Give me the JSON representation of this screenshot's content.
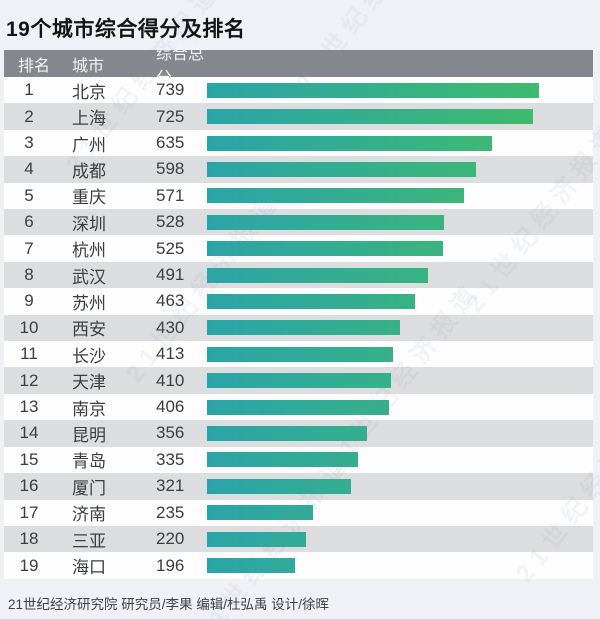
{
  "title": "19个城市综合得分及排名",
  "table": {
    "headers": {
      "rank": "排名",
      "city": "城市",
      "score": "综合总分"
    },
    "rows": [
      {
        "rank": "1",
        "city": "北京",
        "score": 739
      },
      {
        "rank": "2",
        "city": "上海",
        "score": 725
      },
      {
        "rank": "3",
        "city": "广州",
        "score": 635
      },
      {
        "rank": "4",
        "city": "成都",
        "score": 598
      },
      {
        "rank": "5",
        "city": "重庆",
        "score": 571
      },
      {
        "rank": "6",
        "city": "深圳",
        "score": 528
      },
      {
        "rank": "7",
        "city": "杭州",
        "score": 525
      },
      {
        "rank": "8",
        "city": "武汉",
        "score": 491
      },
      {
        "rank": "9",
        "city": "苏州",
        "score": 463
      },
      {
        "rank": "10",
        "city": "西安",
        "score": 430
      },
      {
        "rank": "11",
        "city": "长沙",
        "score": 413
      },
      {
        "rank": "12",
        "city": "天津",
        "score": 410
      },
      {
        "rank": "13",
        "city": "南京",
        "score": 406
      },
      {
        "rank": "14",
        "city": "昆明",
        "score": 356
      },
      {
        "rank": "15",
        "city": "青岛",
        "score": 335
      },
      {
        "rank": "16",
        "city": "厦门",
        "score": 321
      },
      {
        "rank": "17",
        "city": "济南",
        "score": 235
      },
      {
        "rank": "18",
        "city": "三亚",
        "score": 220
      },
      {
        "rank": "19",
        "city": "海口",
        "score": 196
      }
    ]
  },
  "footer": "21世纪经济研究院 研究员/李果  编辑/杜弘禹  设计/徐晖",
  "watermark_text": "21世纪经济报道",
  "colors": {
    "bar_gradient_start": "#2ba4a9",
    "bar_gradient_end": "#3fbb6d",
    "header_bg": "#84878d",
    "row_alt_bg": "#dbdddf",
    "page_bg": "#eff1f6"
  },
  "chart_data": {
    "type": "bar",
    "orientation": "horizontal",
    "title": "19个城市综合得分及排名",
    "categories": [
      "北京",
      "上海",
      "广州",
      "成都",
      "重庆",
      "深圳",
      "杭州",
      "武汉",
      "苏州",
      "西安",
      "长沙",
      "天津",
      "南京",
      "昆明",
      "青岛",
      "厦门",
      "济南",
      "三亚",
      "海口"
    ],
    "values": [
      739,
      725,
      635,
      598,
      571,
      528,
      525,
      491,
      463,
      430,
      413,
      410,
      406,
      356,
      335,
      321,
      235,
      220,
      196
    ],
    "ranks": [
      1,
      2,
      3,
      4,
      5,
      6,
      7,
      8,
      9,
      10,
      11,
      12,
      13,
      14,
      15,
      16,
      17,
      18,
      19
    ],
    "xlabel": "综合总分",
    "ylabel": "城市",
    "xlim": [
      0,
      739
    ],
    "grid": false,
    "legend": false,
    "source_note": "21世纪经济研究院 研究员/李果  编辑/杜弘禹  设计/徐晖"
  }
}
